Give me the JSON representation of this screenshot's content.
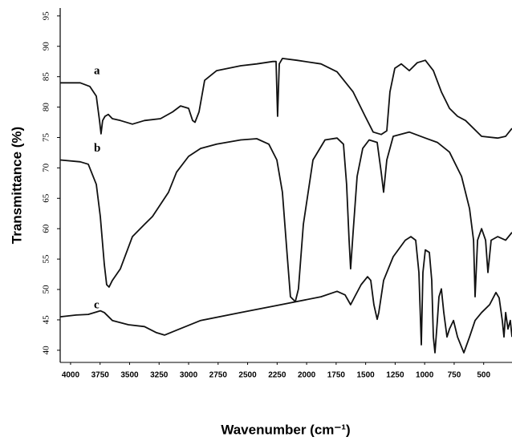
{
  "chart_data": {
    "type": "line",
    "xlabel": "Wavenumber (cm⁻¹)",
    "ylabel": "Transmittance (%)",
    "xlim": [
      4088,
      260
    ],
    "ylim": [
      38,
      96.3
    ],
    "xticks": [
      4000,
      3750,
      3500,
      3250,
      3000,
      2750,
      2500,
      2250,
      2000,
      1750,
      1500,
      1250,
      1000,
      750,
      500
    ],
    "yticks": [
      40,
      45,
      50,
      55,
      60,
      65,
      70,
      75,
      80,
      85,
      90,
      95
    ],
    "grid": false,
    "series": [
      {
        "name": "a",
        "color": "#111111",
        "x": [
          4088,
          3918,
          3837,
          3782,
          3755,
          3742,
          3728,
          3708,
          3680,
          3646,
          3578,
          3476,
          3374,
          3238,
          3136,
          3068,
          3000,
          2966,
          2946,
          2912,
          2864,
          2762,
          2558,
          2422,
          2286,
          2259,
          2246,
          2232,
          2205,
          2082,
          1878,
          1742,
          1606,
          1504,
          1436,
          1368,
          1321,
          1294,
          1253,
          1198,
          1130,
          1062,
          994,
          926,
          858,
          790,
          722,
          654,
          518,
          382,
          314,
          260
        ],
        "values": [
          84.0,
          84.0,
          83.4,
          81.8,
          77.8,
          75.6,
          77.8,
          78.5,
          78.8,
          78.1,
          77.8,
          77.2,
          77.8,
          78.1,
          79.2,
          80.2,
          79.8,
          77.8,
          77.5,
          79.2,
          84.4,
          86.0,
          86.8,
          87.1,
          87.5,
          87.5,
          78.5,
          87.1,
          88.0,
          87.7,
          87.1,
          85.8,
          82.5,
          78.5,
          75.9,
          75.5,
          76.1,
          82.5,
          86.4,
          87.1,
          86.0,
          87.3,
          87.7,
          86.0,
          82.5,
          79.8,
          78.5,
          77.8,
          75.2,
          74.9,
          75.2,
          76.5
        ]
      },
      {
        "name": "b",
        "color": "#111111",
        "x": [
          4088,
          3918,
          3850,
          3782,
          3748,
          3714,
          3694,
          3674,
          3646,
          3578,
          3476,
          3374,
          3306,
          3238,
          3170,
          3102,
          3000,
          2898,
          2762,
          2558,
          2422,
          2320,
          2252,
          2205,
          2164,
          2137,
          2096,
          2069,
          2028,
          1946,
          1844,
          1742,
          1688,
          1661,
          1640,
          1627,
          1606,
          1572,
          1525,
          1470,
          1402,
          1368,
          1348,
          1321,
          1266,
          1130,
          994,
          892,
          790,
          688,
          620,
          586,
          573,
          552,
          518,
          484,
          464,
          437,
          382,
          314,
          260
        ],
        "values": [
          71.3,
          71.0,
          70.6,
          67.3,
          62.0,
          54.1,
          50.8,
          50.4,
          51.5,
          53.4,
          58.7,
          60.7,
          62.0,
          64.0,
          66.0,
          69.3,
          71.9,
          73.2,
          73.9,
          74.6,
          74.8,
          73.9,
          71.3,
          66.0,
          55.4,
          48.8,
          48.0,
          50.1,
          60.7,
          71.3,
          74.6,
          74.9,
          73.9,
          67.3,
          58.1,
          53.4,
          59.4,
          68.6,
          73.2,
          74.6,
          74.2,
          69.3,
          66.0,
          71.3,
          75.2,
          75.9,
          74.9,
          74.2,
          72.6,
          68.6,
          63.3,
          58.1,
          48.8,
          58.1,
          60.0,
          58.1,
          52.8,
          58.1,
          58.7,
          58.1,
          59.4
        ]
      },
      {
        "name": "c",
        "color": "#111111",
        "x": [
          4088,
          3952,
          3850,
          3748,
          3714,
          3646,
          3510,
          3374,
          3272,
          3204,
          3102,
          2898,
          2558,
          2218,
          1878,
          1742,
          1674,
          1627,
          1593,
          1538,
          1484,
          1457,
          1430,
          1402,
          1389,
          1348,
          1266,
          1164,
          1117,
          1076,
          1049,
          1028,
          1015,
          994,
          960,
          940,
          926,
          913,
          892,
          879,
          858,
          838,
          811,
          790,
          756,
          722,
          668,
          620,
          573,
          518,
          450,
          396,
          369,
          342,
          328,
          314,
          294,
          274,
          260
        ],
        "values": [
          45.5,
          45.8,
          45.9,
          46.5,
          46.2,
          44.9,
          44.2,
          43.9,
          42.9,
          42.5,
          43.3,
          44.9,
          46.2,
          47.5,
          48.8,
          49.7,
          49.1,
          47.5,
          48.8,
          50.8,
          52.1,
          51.5,
          47.5,
          45.1,
          46.2,
          51.5,
          55.4,
          58.1,
          58.7,
          58.1,
          52.8,
          40.9,
          52.8,
          56.5,
          56.1,
          51.5,
          42.2,
          39.6,
          44.9,
          48.8,
          50.1,
          46.2,
          42.2,
          43.5,
          44.9,
          42.2,
          39.6,
          42.2,
          44.9,
          46.2,
          47.5,
          49.5,
          48.6,
          44.9,
          42.2,
          46.2,
          43.5,
          44.9,
          42.2
        ]
      }
    ]
  }
}
